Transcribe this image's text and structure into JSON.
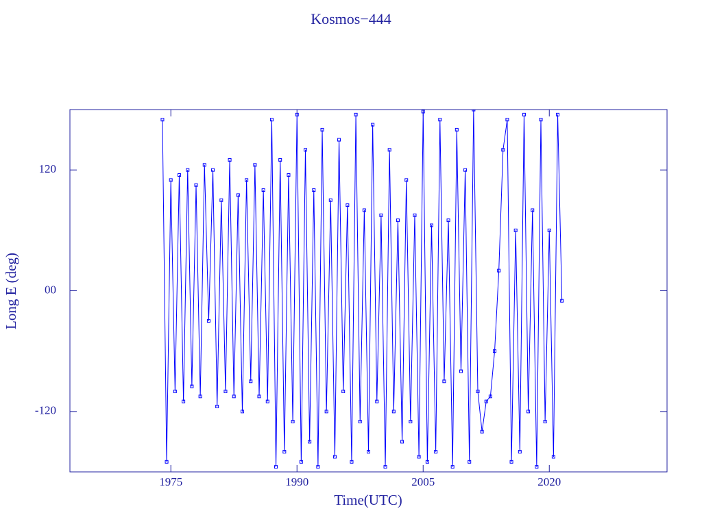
{
  "chart_data": {
    "type": "line",
    "title": "Kosmos−444",
    "x_label": "Time(UTC)",
    "y_label": "Long E (deg)",
    "xlim": [
      1963,
      2034
    ],
    "ylim": [
      -180,
      180
    ],
    "xticks": [
      1975,
      1990,
      2005,
      2020
    ],
    "yticks": [
      -120,
      {
        "value": 0,
        "label": "00"
      },
      120
    ],
    "marker": "square",
    "x": [
      1974,
      1974.5,
      1975,
      1975.5,
      1976,
      1976.5,
      1977,
      1977.5,
      1978,
      1978.5,
      1979,
      1979.5,
      1980,
      1980.5,
      1981,
      1981.5,
      1982,
      1982.5,
      1983,
      1983.5,
      1984,
      1984.5,
      1985,
      1985.5,
      1986,
      1986.5,
      1987,
      1987.5,
      1988,
      1988.5,
      1989,
      1989.5,
      1990,
      1990.5,
      1991,
      1991.5,
      1992,
      1992.5,
      1993,
      1993.5,
      1994,
      1994.5,
      1995,
      1995.5,
      1996,
      1996.5,
      1997,
      1997.5,
      1998,
      1998.5,
      1999,
      1999.5,
      2000,
      2000.5,
      2001,
      2001.5,
      2002,
      2002.5,
      2003,
      2003.5,
      2004,
      2004.5,
      2005,
      2005.5,
      2006,
      2006.5,
      2007,
      2007.5,
      2008,
      2008.5,
      2009,
      2009.5,
      2010,
      2010.5,
      2011,
      2011.5,
      2012,
      2012.5,
      2013,
      2013.5,
      2014,
      2014.5,
      2015,
      2015.5,
      2016,
      2016.5,
      2017,
      2017.5,
      2018,
      2018.5,
      2019,
      2019.5,
      2020,
      2020.5,
      2021,
      2021.5
    ],
    "series": [
      {
        "color": "#0000ff",
        "values": [
          170,
          -170,
          110,
          -100,
          115,
          -110,
          120,
          -95,
          105,
          -105,
          125,
          -30,
          120,
          -115,
          90,
          -100,
          130,
          -105,
          95,
          -120,
          110,
          -90,
          125,
          -105,
          100,
          -110,
          170,
          -175,
          130,
          -160,
          115,
          -130,
          175,
          -170,
          140,
          -150,
          100,
          -175,
          160,
          -120,
          90,
          -165,
          150,
          -100,
          85,
          -170,
          175,
          -130,
          80,
          -160,
          165,
          -110,
          75,
          -175,
          140,
          -120,
          70,
          -150,
          110,
          -130,
          75,
          -165,
          178,
          -170,
          65,
          -160,
          170,
          -90,
          70,
          -175,
          160,
          -80,
          120,
          -170,
          180,
          -100,
          -140,
          -110,
          -105,
          -60,
          20,
          140,
          170,
          -170,
          60,
          -160,
          175,
          -120,
          80,
          -175,
          170,
          -130,
          60,
          -165,
          175,
          -10
        ]
      }
    ]
  }
}
